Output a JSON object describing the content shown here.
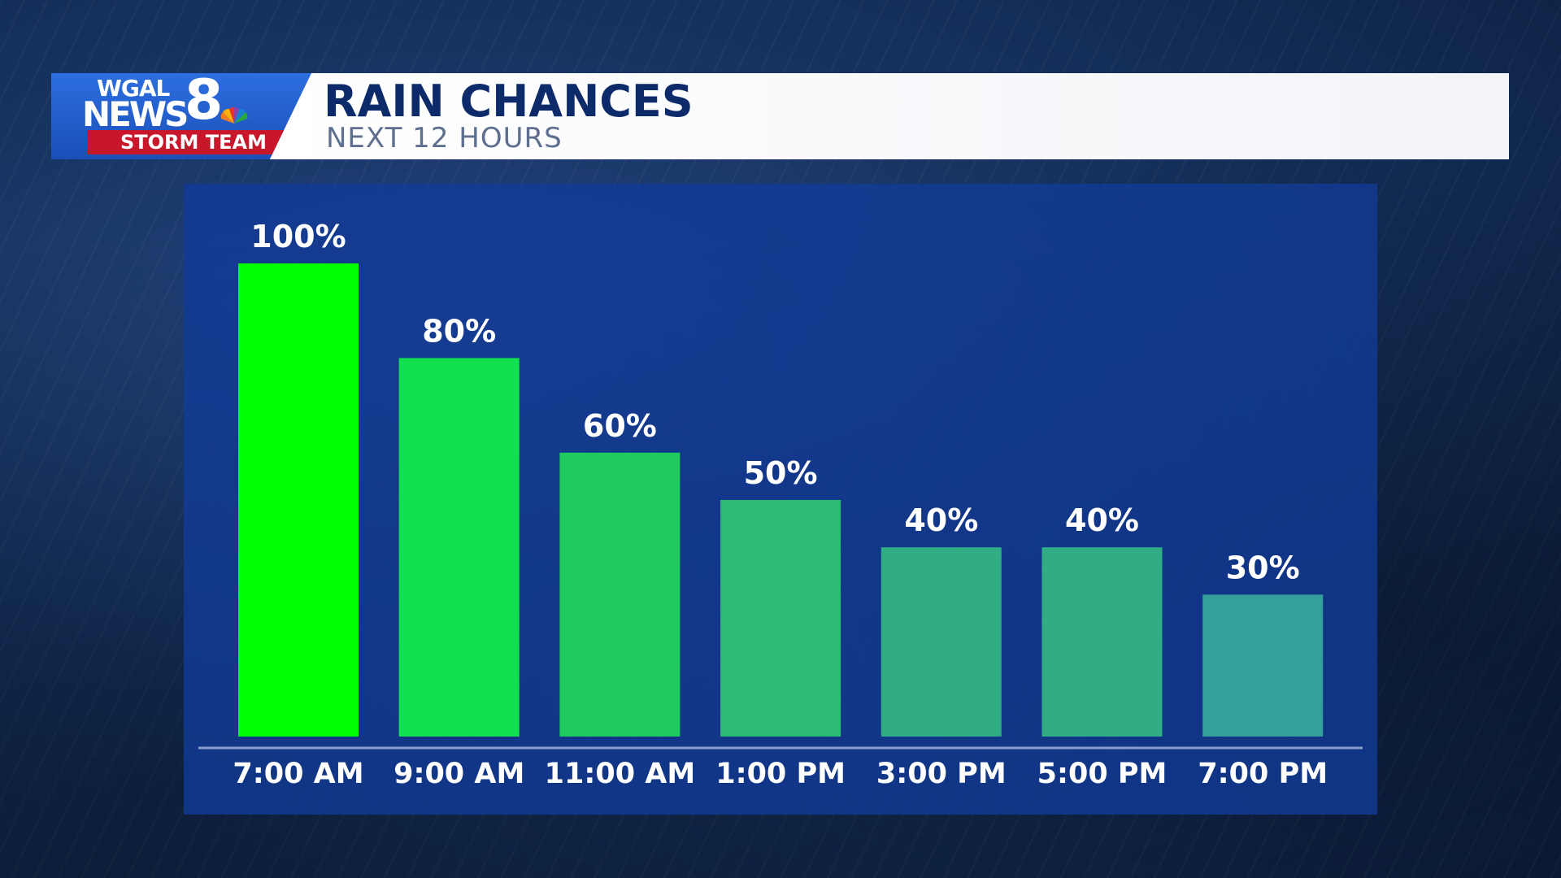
{
  "header": {
    "logo": {
      "line1": "WGAL",
      "line2": "NEWS",
      "numeral": "8",
      "badge": "STORM TEAM"
    },
    "title": "RAIN CHANCES",
    "subtitle": "NEXT 12 HOURS"
  },
  "colors": {
    "logo_blue": "#2d6fe0",
    "badge_red": "#c8172b",
    "title_navy": "#0d2a6b",
    "panel_blue": "#123a96",
    "bar_colors": [
      "#00ff00",
      "#12e04e",
      "#1fcb5e",
      "#2bbb73",
      "#30ad84",
      "#30ad84",
      "#35a09b"
    ]
  },
  "icons": {
    "network_logo": "nbc-peacock-icon"
  },
  "chart_data": {
    "type": "bar",
    "title": "RAIN CHANCES",
    "subtitle": "NEXT 12 HOURS",
    "categories": [
      "7:00 AM",
      "9:00 AM",
      "11:00 AM",
      "1:00 PM",
      "3:00 PM",
      "5:00 PM",
      "7:00 PM"
    ],
    "values": [
      100,
      80,
      60,
      50,
      40,
      40,
      30
    ],
    "value_labels": [
      "100%",
      "80%",
      "60%",
      "50%",
      "40%",
      "40%",
      "30%"
    ],
    "ylim": [
      0,
      100
    ],
    "grid": false,
    "legend": "none"
  }
}
